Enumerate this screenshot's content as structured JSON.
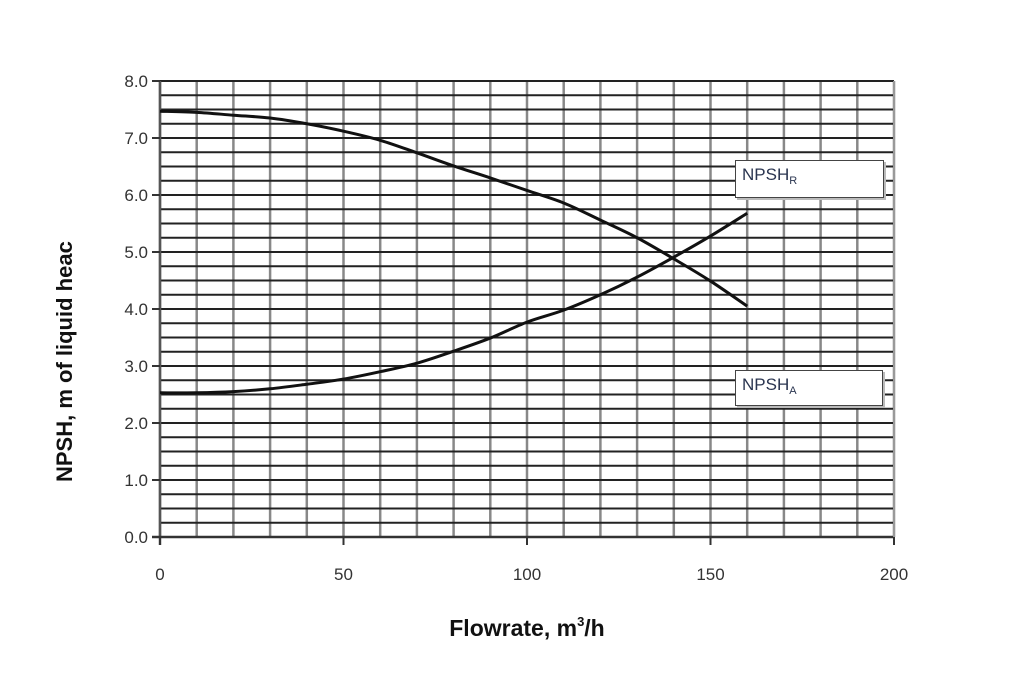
{
  "chart_data": {
    "type": "line",
    "title": "",
    "xlabel": "Flowrate, m3/h",
    "xlabel_main": "Flowrate, m",
    "xlabel_sup": "3",
    "xlabel_tail": "/h",
    "ylabel": "NPSH, m of liquid heac",
    "xlim": [
      0,
      200
    ],
    "ylim": [
      0.0,
      8.0
    ],
    "x_ticks": [
      "0",
      "50",
      "100",
      "150",
      "200"
    ],
    "y_ticks": [
      "0.0",
      "1.0",
      "2.0",
      "3.0",
      "4.0",
      "5.0",
      "6.0",
      "7.0",
      "8.0"
    ],
    "grid": true,
    "x_minor_step": 10,
    "y_minor_step": 0.25,
    "x": [
      0,
      10,
      20,
      30,
      40,
      50,
      60,
      70,
      80,
      90,
      100,
      110,
      120,
      130,
      140,
      150,
      160
    ],
    "series": [
      {
        "name": "NPSHR",
        "label_main": "NPSH",
        "label_sub": "R",
        "values": [
          7.47,
          7.45,
          7.4,
          7.35,
          7.25,
          7.12,
          6.96,
          6.74,
          6.51,
          6.3,
          6.08,
          5.86,
          5.56,
          5.25,
          4.88,
          4.49,
          4.05
        ]
      },
      {
        "name": "NPSHA",
        "label_main": "NPSH",
        "label_sub": "A",
        "values": [
          2.53,
          2.53,
          2.55,
          2.6,
          2.68,
          2.77,
          2.9,
          3.05,
          3.26,
          3.49,
          3.77,
          3.98,
          4.25,
          4.56,
          4.91,
          5.28,
          5.68
        ]
      }
    ],
    "annotations": [
      {
        "text": "NPSHR",
        "near_series": "NPSHR"
      },
      {
        "text": "NPSHA",
        "near_series": "NPSHA"
      }
    ],
    "colors": {
      "line": "#111111",
      "grid_h": "#222222",
      "grid_v": "#888888",
      "tick_text": "#333333"
    }
  }
}
